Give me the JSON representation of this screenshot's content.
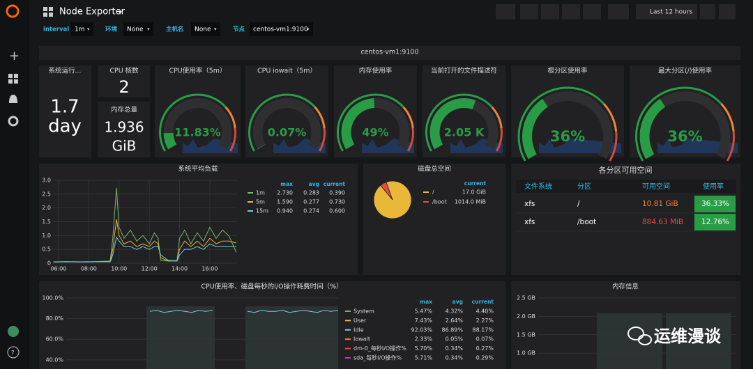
{
  "topbar": {
    "title": "Node Exporter",
    "time_range": "Last 12 hours"
  },
  "variables": [
    {
      "name": "interval",
      "value": "1m"
    },
    {
      "name": "环境",
      "value": "None"
    },
    {
      "name": "主机名",
      "value": "None"
    },
    {
      "name": "节点",
      "value": "centos-vm1:9100"
    }
  ],
  "row_title": "centos-vm1:9100",
  "stats": [
    {
      "title": "系统运行...",
      "value": "1.7",
      "unit": "day"
    },
    {
      "title": "CPU 核数",
      "value": "2"
    },
    {
      "title": "内存总量",
      "value": "1.936",
      "unit": "GiB"
    }
  ],
  "gauges": [
    {
      "title": "CPU使用率（5m）",
      "value": 11.83,
      "value_label": "11.83%"
    },
    {
      "title": "CPU iowait（5m）",
      "value": 0.07,
      "value_label": "0.07%"
    },
    {
      "title": "内存使用率",
      "value": 49,
      "value_label": "49%"
    },
    {
      "title": "当前打开的文件描述符",
      "value_label": "2.05 K"
    },
    {
      "title": "根分区使用率",
      "value": 36,
      "value_label": "36%"
    },
    {
      "title": "最大分区(/)使用率",
      "value": 36,
      "value_label": "36%"
    }
  ],
  "load_chart": {
    "type": "line",
    "title": "系统平均负载",
    "xlim": [
      "05:38",
      "17:48"
    ],
    "xticks": [
      "06:00",
      "08:00",
      "10:00",
      "12:00",
      "14:00",
      "16:00"
    ],
    "ylim": [
      0,
      3
    ],
    "yticks": [
      {
        "value": 0,
        "label": "0"
      },
      {
        "value": 0.5,
        "label": "0.5"
      },
      {
        "value": 1,
        "label": "1.0"
      },
      {
        "value": 1.5,
        "label": "1.5"
      },
      {
        "value": 2,
        "label": "2.0"
      },
      {
        "value": 2.5,
        "label": "2.5"
      },
      {
        "value": 3,
        "label": "3.0"
      }
    ],
    "x": [
      "05:40",
      "06:30",
      "07:30",
      "08:30",
      "09:25",
      "09:35",
      "09:50",
      "10:00",
      "10:20",
      "10:45",
      "11:10",
      "11:35",
      "12:00",
      "12:20",
      "12:35",
      "12:45",
      "13:15",
      "13:50",
      "14:00",
      "14:20",
      "14:45",
      "15:10",
      "15:35",
      "16:00",
      "16:25",
      "16:50",
      "17:15",
      "17:45"
    ],
    "columns": [
      "max",
      "avg",
      "current"
    ],
    "series": [
      {
        "name": "1m",
        "color": "#7eb26d",
        "values": [
          0.05,
          0.06,
          0.05,
          0.06,
          0.08,
          0.9,
          2.73,
          1.3,
          0.9,
          1.2,
          0.8,
          1.0,
          0.7,
          1.1,
          0.9,
          0.1,
          0.08,
          0.1,
          0.9,
          1.2,
          0.7,
          1.1,
          0.8,
          1.3,
          0.9,
          1.2,
          1.0,
          0.39
        ],
        "stats": [
          "2.730",
          "0.283",
          "0.390"
        ]
      },
      {
        "name": "5m",
        "color": "#eab839",
        "values": [
          0.05,
          0.05,
          0.05,
          0.05,
          0.06,
          0.5,
          1.59,
          1.0,
          0.7,
          0.8,
          0.6,
          0.7,
          0.6,
          0.8,
          0.7,
          0.2,
          0.08,
          0.08,
          0.5,
          0.8,
          0.6,
          0.8,
          0.6,
          0.9,
          0.7,
          0.8,
          0.8,
          0.73
        ],
        "stats": [
          "1.590",
          "0.277",
          "0.730"
        ]
      },
      {
        "name": "15m",
        "color": "#6ed0e0",
        "values": [
          0.04,
          0.05,
          0.04,
          0.05,
          0.05,
          0.3,
          0.94,
          0.8,
          0.6,
          0.6,
          0.5,
          0.6,
          0.5,
          0.6,
          0.6,
          0.3,
          0.1,
          0.08,
          0.3,
          0.5,
          0.5,
          0.6,
          0.5,
          0.7,
          0.6,
          0.6,
          0.6,
          0.6
        ],
        "stats": [
          "0.940",
          "0.274",
          "0.600"
        ]
      }
    ]
  },
  "disk_pie": {
    "type": "pie",
    "title": "磁盘总空间",
    "column": "current",
    "slices": [
      {
        "name": "/",
        "color": "#eab839",
        "value": 17.0,
        "value_label": "17.0 GiB"
      },
      {
        "name": "/boot",
        "color": "#e24d42",
        "value": 0.99,
        "value_label": "1014.0 MiB"
      }
    ]
  },
  "partition_table": {
    "title": "各分区可用空间",
    "columns": [
      "文件系统",
      "分区",
      "可用空间",
      "使用率"
    ],
    "rows": [
      [
        "xfs",
        "/",
        "10.81 GiB",
        "36.33%"
      ],
      [
        "xfs",
        "/boot",
        "884.63 MiB",
        "12.76%"
      ]
    ]
  },
  "cpu_chart": {
    "type": "line",
    "title": "CPU使用率、磁盘每秒的I/O操作耗费时间（%）",
    "ylim": [
      0,
      100
    ],
    "yticks": [
      {
        "value": 100,
        "label": "100.0%"
      },
      {
        "value": 80,
        "label": "80.0%"
      },
      {
        "value": 60,
        "label": "60.0%"
      },
      {
        "value": 40,
        "label": "40.0%"
      }
    ],
    "idle_values": [
      null,
      null,
      null,
      null,
      null,
      null,
      null,
      null,
      null,
      null,
      null,
      null,
      87,
      88,
      86,
      87,
      88,
      87,
      86,
      88,
      87,
      88,
      null,
      null,
      null,
      null,
      87,
      86,
      88,
      87,
      87,
      88,
      86,
      87,
      88,
      87,
      86,
      88,
      87,
      88
    ],
    "columns": [
      "max",
      "avg",
      "current"
    ],
    "legend": [
      {
        "name": "System",
        "color": "#7eb26d",
        "stats": [
          "5.47%",
          "4.32%",
          "4.40%"
        ]
      },
      {
        "name": "User",
        "color": "#eab839",
        "stats": [
          "7.43%",
          "2.64%",
          "2.27%"
        ]
      },
      {
        "name": "Idle",
        "color": "#6ed0e0",
        "stats": [
          "92.03%",
          "86.89%",
          "88.17%"
        ]
      },
      {
        "name": "Iowait",
        "color": "#ef843c",
        "stats": [
          "2.33%",
          "0.05%",
          "0.07%"
        ]
      },
      {
        "name": "dm-0_每秒I/O操作%",
        "color": "#e24d42",
        "stats": [
          "5.70%",
          "0.34%",
          "0.27%"
        ]
      },
      {
        "name": "sda_每秒I/O操作%",
        "color": "#ba43a9",
        "stats": [
          "5.71%",
          "0.34%",
          "0.29%"
        ]
      }
    ]
  },
  "mem_chart": {
    "title": "内存信息",
    "ylim": [
      0,
      2.5
    ],
    "yticks": [
      {
        "value": 2.5,
        "label": "2.5 GB"
      },
      {
        "value": 2,
        "label": "2.0 GB"
      },
      {
        "value": 1.5,
        "label": "1.5 GB"
      },
      {
        "value": 1,
        "label": "1.0 GB"
      }
    ]
  },
  "watermark": "运维漫谈"
}
